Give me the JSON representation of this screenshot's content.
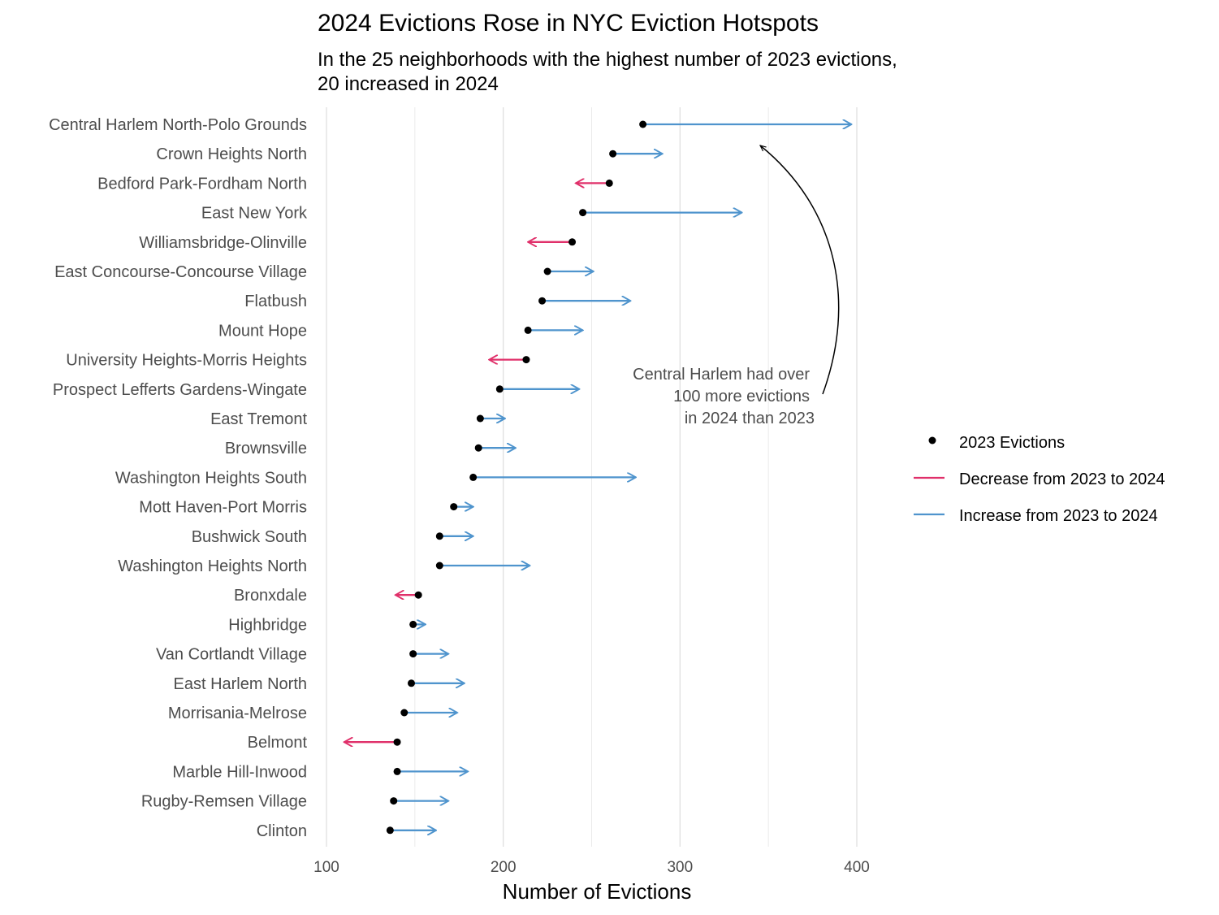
{
  "chart_data": {
    "type": "arrow-dot",
    "title": "2024 Evictions Rose in NYC Eviction Hotspots",
    "subtitle": [
      "In the 25 neighborhoods with the highest number of 2023 evictions,",
      "20 increased in 2024"
    ],
    "xlabel": "Number of Evictions",
    "ylabel": "",
    "xlim": [
      100,
      400
    ],
    "xticks": [
      100,
      200,
      300,
      400
    ],
    "grid": true,
    "legend": {
      "position": "right",
      "items": [
        {
          "label": "2023 Evictions",
          "kind": "dot",
          "color": "#000000"
        },
        {
          "label": "Decrease from 2023 to 2024",
          "kind": "line",
          "color": "#e0306a"
        },
        {
          "label": "Increase from 2023 to 2024",
          "kind": "line",
          "color": "#4f94cd"
        }
      ]
    },
    "colors": {
      "increase": "#4f94cd",
      "decrease": "#e0306a",
      "dot": "#000000"
    },
    "annotation": {
      "lines": [
        "Central Harlem had over",
        "100 more evictions",
        "in 2024 than 2023"
      ],
      "points_to": "Central Harlem North-Polo Grounds"
    },
    "categories": [
      "Central Harlem North-Polo Grounds",
      "Crown Heights North",
      "Bedford Park-Fordham North",
      "East New York",
      "Williamsbridge-Olinville",
      "East Concourse-Concourse Village",
      "Flatbush",
      "Mount Hope",
      "University Heights-Morris Heights",
      "Prospect Lefferts Gardens-Wingate",
      "East Tremont",
      "Brownsville",
      "Washington Heights South",
      "Mott Haven-Port Morris",
      "Bushwick South",
      "Washington Heights North",
      "Bronxdale",
      "Highbridge",
      "Van Cortlandt Village",
      "East Harlem North",
      "Morrisania-Melrose",
      "Belmont",
      "Marble Hill-Inwood",
      "Rugby-Remsen Village",
      "Clinton"
    ],
    "series": [
      {
        "name": "2023 Evictions",
        "values": [
          279,
          262,
          260,
          245,
          239,
          225,
          222,
          214,
          213,
          198,
          187,
          186,
          183,
          172,
          164,
          164,
          152,
          149,
          149,
          148,
          144,
          140,
          140,
          138,
          136
        ]
      },
      {
        "name": "2024 Evictions",
        "values": [
          397,
          290,
          241,
          335,
          214,
          251,
          272,
          245,
          192,
          243,
          201,
          207,
          275,
          183,
          183,
          215,
          139,
          156,
          169,
          178,
          174,
          110,
          180,
          169,
          162
        ]
      }
    ]
  }
}
